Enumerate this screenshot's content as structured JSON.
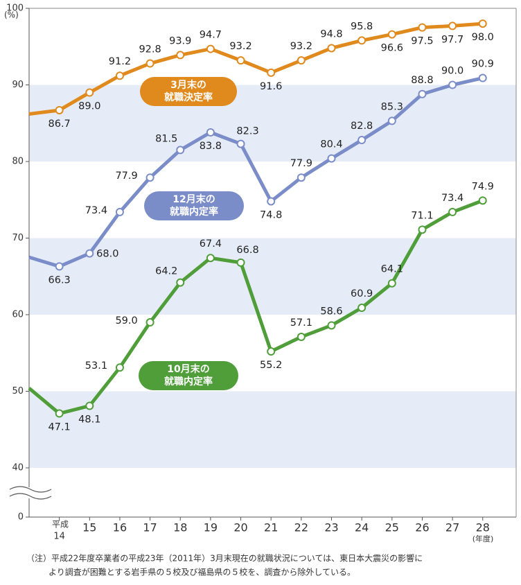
{
  "chart_data": {
    "type": "line",
    "y_unit": "(%)",
    "x_unit": "(年度)",
    "era_label": "平成",
    "categories": [
      null,
      "14",
      "15",
      "16",
      "17",
      "18",
      "19",
      "20",
      "21",
      "22",
      "23",
      "24",
      "25",
      "26",
      "27",
      "28"
    ],
    "series": [
      {
        "label": [
          "3月末の",
          "就職決定率"
        ],
        "color": "#e08a1e",
        "values": [
          86.2,
          86.7,
          89.0,
          91.2,
          92.8,
          93.9,
          94.7,
          93.2,
          91.6,
          93.2,
          94.8,
          95.8,
          96.6,
          97.5,
          97.7,
          98.0
        ],
        "value_labels": [
          null,
          "86.7",
          "89.0",
          "91.2",
          "92.8",
          "93.9",
          "94.7",
          "93.2",
          "91.6",
          "93.2",
          "94.8",
          "95.8",
          "96.6",
          "97.5",
          "97.7",
          "98.0"
        ]
      },
      {
        "label": [
          "12月末の",
          "就職内定率"
        ],
        "color": "#7b8dc8",
        "values": [
          67.5,
          66.3,
          68.0,
          73.4,
          77.9,
          81.5,
          83.8,
          82.3,
          74.8,
          77.9,
          80.4,
          82.8,
          85.3,
          88.8,
          90.0,
          90.9
        ],
        "value_labels": [
          null,
          "66.3",
          "68.0",
          "73.4",
          "77.9",
          "81.5",
          "83.8",
          "82.3",
          "74.8",
          "77.9",
          "80.4",
          "82.8",
          "85.3",
          "88.8",
          "90.0",
          "90.9"
        ]
      },
      {
        "label": [
          "10月末の",
          "就職内定率"
        ],
        "color": "#4f9e3a",
        "values": [
          50.4,
          47.1,
          48.1,
          53.1,
          59.0,
          64.2,
          67.4,
          66.8,
          55.2,
          57.1,
          58.6,
          60.9,
          64.1,
          71.1,
          73.4,
          74.9
        ],
        "value_labels": [
          null,
          "47.1",
          "48.1",
          "53.1",
          "59.0",
          "64.2",
          "67.4",
          "66.8",
          "55.2",
          "57.1",
          "58.6",
          "60.9",
          "64.1",
          "71.1",
          "73.4",
          "74.9"
        ]
      }
    ],
    "ylim": [
      40,
      100
    ],
    "yticks": [
      0,
      40,
      50,
      60,
      70,
      80,
      90,
      100
    ],
    "axis_break": true,
    "bands": [
      [
        40,
        50
      ],
      [
        60,
        70
      ],
      [
        80,
        90
      ]
    ],
    "footnote": [
      "（注）平成22年度卒業者の平成23年（2011年）3月末現在の就職状況については、東日本大震災の影響に",
      "より調査が困難とする岩手県の５校及び福島県の５校を、調査から除外している。"
    ]
  }
}
